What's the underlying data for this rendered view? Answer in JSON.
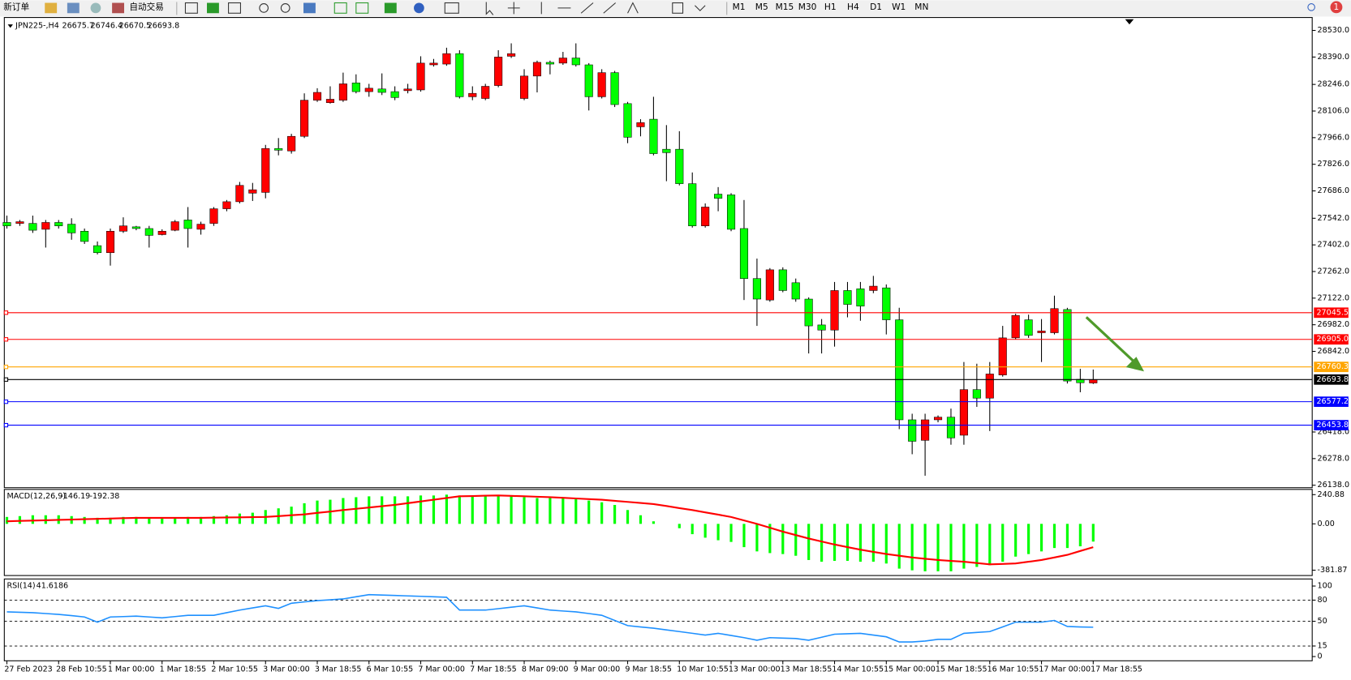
{
  "toolbar": {
    "new_order": "新订单",
    "auto_trading": "自动交易",
    "timeframes": [
      "M1",
      "M5",
      "M15",
      "M30",
      "H1",
      "H4",
      "D1",
      "W1",
      "MN"
    ],
    "notifications": "1"
  },
  "chart_data": [
    {
      "type": "candlestick",
      "symbol": "JPN225-,H4",
      "categories": [
        "27 Feb 2023",
        null,
        null,
        null,
        "28 Feb 10:55",
        null,
        null,
        null,
        "1 Mar 00:00",
        null,
        null,
        null,
        "1 Mar 18:55",
        null,
        null,
        null,
        "2 Mar 10:55",
        null,
        null,
        null,
        "3 Mar 00:00",
        null,
        null,
        null,
        "3 Mar 18:55",
        null,
        null,
        null,
        "6 Mar 10:55",
        null,
        null,
        null,
        "7 Mar 00:00",
        null,
        null,
        null,
        "7 Mar 18:55",
        null,
        null,
        null,
        "8 Mar 09:00",
        null,
        null,
        null,
        "9 Mar 00:00",
        null,
        null,
        null,
        "9 Mar 18:55",
        null,
        null,
        null,
        "10 Mar 10:55",
        null,
        null,
        null,
        "13 Mar 00:00",
        null,
        null,
        null,
        "13 Mar 18:55",
        null,
        null,
        null,
        "14 Mar 10:55",
        null,
        null,
        null,
        "15 Mar 00:00",
        null,
        null,
        null,
        "15 Mar 18:55",
        null,
        null,
        null,
        "16 Mar 10:55",
        null,
        null,
        null,
        "17 Mar 00:00",
        null,
        null,
        null,
        "17 Mar 18:55"
      ],
      "ohlc": [
        [
          27520,
          27556,
          27488,
          27502
        ],
        [
          27515,
          27533,
          27502,
          27524
        ],
        [
          27515,
          27556,
          27465,
          27479
        ],
        [
          27484,
          27533,
          27388,
          27520
        ],
        [
          27520,
          27533,
          27488,
          27502
        ],
        [
          27511,
          27542,
          27429,
          27465
        ],
        [
          27474,
          27488,
          27407,
          27420
        ],
        [
          27398,
          27420,
          27352,
          27361
        ],
        [
          27361,
          27488,
          27293,
          27474
        ],
        [
          27474,
          27547,
          27465,
          27502
        ],
        [
          27497,
          27502,
          27479,
          27488
        ],
        [
          27488,
          27502,
          27388,
          27452
        ],
        [
          27456,
          27484,
          27452,
          27474
        ],
        [
          27479,
          27533,
          27474,
          27524
        ],
        [
          27533,
          27601,
          27388,
          27488
        ],
        [
          27484,
          27524,
          27456,
          27511
        ],
        [
          27515,
          27601,
          27502,
          27592
        ],
        [
          27592,
          27638,
          27579,
          27629
        ],
        [
          27629,
          27733,
          27620,
          27715
        ],
        [
          27674,
          27728,
          27633,
          27692
        ],
        [
          27678,
          27928,
          27647,
          27909
        ],
        [
          27909,
          27964,
          27873,
          27900
        ],
        [
          27896,
          27986,
          27882,
          27973
        ],
        [
          27973,
          28199,
          27964,
          28163
        ],
        [
          28163,
          28226,
          28154,
          28204
        ],
        [
          28150,
          28236,
          28145,
          28168
        ],
        [
          28163,
          28308,
          28154,
          28249
        ],
        [
          28254,
          28299,
          28199,
          28208
        ],
        [
          28208,
          28249,
          28181,
          28226
        ],
        [
          28222,
          28304,
          28190,
          28204
        ],
        [
          28208,
          28236,
          28163,
          28177
        ],
        [
          28213,
          28249,
          28199,
          28222
        ],
        [
          28217,
          28394,
          28208,
          28358
        ],
        [
          28349,
          28380,
          28340,
          28358
        ],
        [
          28353,
          28439,
          28344,
          28408
        ],
        [
          28408,
          28426,
          28172,
          28181
        ],
        [
          28181,
          28236,
          28163,
          28199
        ],
        [
          28172,
          28249,
          28163,
          28236
        ],
        [
          28240,
          28426,
          28231,
          28390
        ],
        [
          28394,
          28462,
          28385,
          28408
        ],
        [
          28172,
          28326,
          28163,
          28290
        ],
        [
          28290,
          28371,
          28204,
          28362
        ],
        [
          28362,
          28371,
          28299,
          28353
        ],
        [
          28358,
          28417,
          28349,
          28385
        ],
        [
          28385,
          28462,
          28340,
          28349
        ],
        [
          28349,
          28358,
          28109,
          28181
        ],
        [
          28181,
          28326,
          28172,
          28308
        ],
        [
          28308,
          28317,
          28127,
          28140
        ],
        [
          28145,
          28154,
          27937,
          27968
        ],
        [
          28023,
          28063,
          27973,
          28045
        ],
        [
          28063,
          28181,
          27873,
          27882
        ],
        [
          27905,
          28032,
          27737,
          27887
        ],
        [
          27905,
          28000,
          27715,
          27724
        ],
        [
          27724,
          27783,
          27493,
          27502
        ],
        [
          27502,
          27620,
          27493,
          27601
        ],
        [
          27669,
          27706,
          27579,
          27647
        ],
        [
          27665,
          27674,
          27474,
          27484
        ],
        [
          27488,
          27638,
          27112,
          27225
        ],
        [
          27225,
          27330,
          26976,
          27117
        ],
        [
          27112,
          27280,
          27103,
          27271
        ],
        [
          27271,
          27284,
          27153,
          27162
        ],
        [
          27203,
          27225,
          27103,
          27117
        ],
        [
          27117,
          27126,
          26831,
          26976
        ],
        [
          26981,
          27012,
          26831,
          26954
        ],
        [
          26954,
          27207,
          26867,
          27162
        ],
        [
          27162,
          27207,
          27021,
          27089
        ],
        [
          27171,
          27207,
          27003,
          27080
        ],
        [
          27162,
          27239,
          27148,
          27185
        ],
        [
          27176,
          27194,
          26931,
          27008
        ],
        [
          27008,
          27071,
          26433,
          26482
        ],
        [
          26482,
          26514,
          26301,
          26369
        ],
        [
          26374,
          26514,
          26188,
          26482
        ],
        [
          26482,
          26505,
          26469,
          26496
        ],
        [
          26496,
          26541,
          26351,
          26387
        ],
        [
          26401,
          26786,
          26351,
          26641
        ],
        [
          26641,
          26777,
          26550,
          26596
        ],
        [
          26596,
          26786,
          26423,
          26723
        ],
        [
          26718,
          26976,
          26709,
          26913
        ],
        [
          26913,
          27040,
          26904,
          27031
        ],
        [
          27008,
          27035,
          26913,
          26926
        ],
        [
          26940,
          27012,
          26786,
          26949
        ],
        [
          26940,
          27135,
          26931,
          27067
        ],
        [
          27062,
          27071,
          26673,
          26686
        ],
        [
          26695,
          26750,
          26627,
          26677
        ],
        [
          26675.7,
          26746.4,
          26670.5,
          26693.8
        ]
      ],
      "up_color": "#ff0000",
      "down_color": "#00ff00",
      "ylim": [
        26125,
        28598
      ],
      "yticks": [
        {
          "value": 28530,
          "label": "28530.0"
        },
        {
          "value": 28390,
          "label": "28390.0"
        },
        {
          "value": 28246,
          "label": "28246.0"
        },
        {
          "value": 28106,
          "label": "28106.0"
        },
        {
          "value": 27966,
          "label": "27966.0"
        },
        {
          "value": 27826,
          "label": "27826.0"
        },
        {
          "value": 27686,
          "label": "27686.0"
        },
        {
          "value": 27542,
          "label": "27542.0"
        },
        {
          "value": 27402,
          "label": "27402.0"
        },
        {
          "value": 27262,
          "label": "27262.0"
        },
        {
          "value": 27122,
          "label": "27122.0"
        },
        {
          "value": 26982,
          "label": "26982.0"
        },
        {
          "value": 26842,
          "label": "26842.0"
        },
        {
          "value": 26418,
          "label": "26418.0"
        },
        {
          "value": 26278,
          "label": "26278.0"
        },
        {
          "value": 26138,
          "label": "26138.0"
        }
      ],
      "price_lines": [
        {
          "value": 27045.5,
          "color": "#ff0000"
        },
        {
          "value": 26905,
          "label": "26905.0",
          "color": "#ff0000"
        },
        {
          "value": 26760.3,
          "color": "#ffa500"
        },
        {
          "value": 26693.8,
          "color": "#000000"
        },
        {
          "value": 26577.2,
          "color": "#0000ff"
        },
        {
          "value": 26453.8,
          "color": "#0000ff"
        }
      ]
    },
    {
      "type": "macd",
      "title": "MACD(12,26,9)",
      "series": [
        {
          "color": "#00ff00",
          "values": [
            57,
            64,
            71,
            71,
            71,
            64,
            57,
            50,
            50,
            57,
            57,
            50,
            50,
            50,
            57,
            57,
            64,
            71,
            85,
            92,
            114,
            128,
            142,
            170,
            192,
            199,
            213,
            220,
            227,
            227,
            227,
            227,
            234,
            234,
            241,
            234,
            227,
            227,
            227,
            227,
            220,
            213,
            213,
            213,
            206,
            192,
            178,
            156,
            114,
            71,
            21,
            0,
            -36,
            -85,
            -114,
            -135,
            -149,
            -192,
            -227,
            -241,
            -249,
            -263,
            -298,
            -312,
            -305,
            -305,
            -312,
            -312,
            -327,
            -369,
            -383,
            -391,
            -391,
            -391,
            -369,
            -355,
            -341,
            -312,
            -270,
            -249,
            -227,
            -199,
            -199,
            -185,
            -146.19
          ]
        },
        {
          "color": "#ff0000",
          "values": [
            21.3,
            24.1,
            27,
            29.8,
            32.7,
            35.5,
            38.3,
            41.2,
            44,
            46.9,
            49.7,
            49.7,
            49.7,
            49.7,
            49.7,
            49.7,
            51.1,
            52.5,
            54,
            55.4,
            56.8,
            63.9,
            71,
            78.1,
            90.2,
            101.5,
            113.6,
            124.3,
            134.9,
            145.6,
            156.2,
            170.4,
            184.6,
            198.8,
            213,
            227.2,
            229.3,
            232.2,
            234.3,
            230.8,
            227.2,
            223.7,
            220.1,
            214.8,
            209.5,
            204.1,
            198.8,
            189.9,
            181.1,
            172.2,
            163.3,
            147,
            129.9,
            113.6,
            94.4,
            76,
            56.8,
            28.4,
            0,
            -32,
            -63.9,
            -92.3,
            -120.7,
            -145.6,
            -170.4,
            -191.7,
            -213,
            -230.8,
            -248.5,
            -262.7,
            -276.9,
            -287.6,
            -298.2,
            -305.3,
            -312.4,
            -323.1,
            -333.7,
            -330.2,
            -326.6,
            -312.4,
            -298.2,
            -276.9,
            -255.6,
            -223.7,
            -192.38
          ]
        }
      ],
      "ylim": [
        -426,
        284
      ],
      "yticks": [
        240.88,
        {
          "value": 0,
          "label": "0.00"
        },
        -381.87
      ]
    },
    {
      "type": "line",
      "title": "RSI(14)",
      "series": [
        {
          "color": "#1e90ff",
          "values": [
            63.4,
            62.8,
            62.2,
            61,
            59.8,
            58,
            56.1,
            48.8,
            56.1,
            56.7,
            57.3,
            56.1,
            54.9,
            56.7,
            58.5,
            58.5,
            58.5,
            62.2,
            65.9,
            69,
            72,
            68.3,
            75.6,
            77.5,
            79.3,
            80.5,
            81.7,
            84.8,
            87.8,
            87.2,
            86.6,
            86,
            85.4,
            84.8,
            84.1,
            65.9,
            65.9,
            65.9,
            67.9,
            70,
            72,
            69,
            65.9,
            64.6,
            63.4,
            61,
            58.5,
            51.2,
            43.9,
            42,
            40.2,
            37.8,
            35.4,
            33,
            30.5,
            32.9,
            29.9,
            26.8,
            23.2,
            26.8,
            26.2,
            25.6,
            23.2,
            27.4,
            31.7,
            32.3,
            32.9,
            30.5,
            28,
            20.7,
            20.7,
            22,
            24.4,
            24.4,
            32.9,
            34.2,
            35.4,
            42,
            48.8,
            48.8,
            48.8,
            51.2,
            42.7,
            42,
            41.6186
          ]
        }
      ],
      "ylim": [
        -6,
        110
      ],
      "yticks": [
        100,
        80,
        50,
        15,
        0
      ],
      "levels": [
        80,
        50,
        15
      ]
    }
  ]
}
